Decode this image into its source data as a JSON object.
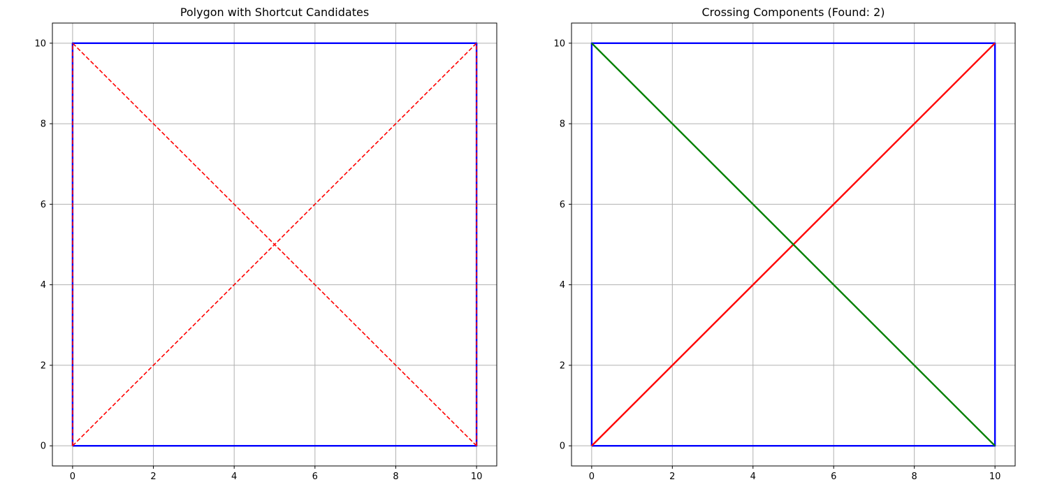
{
  "chart_data": [
    {
      "type": "line",
      "title": "Polygon with Shortcut Candidates",
      "xlabel": "",
      "ylabel": "",
      "xlim": [
        -0.5,
        10.5
      ],
      "ylim": [
        -0.5,
        10.5
      ],
      "x_ticks": [
        0,
        2,
        4,
        6,
        8,
        10
      ],
      "y_ticks": [
        0,
        2,
        4,
        6,
        8,
        10
      ],
      "x_tick_labels": [
        "0",
        "2",
        "4",
        "6",
        "8",
        "10"
      ],
      "y_tick_labels": [
        "0",
        "2",
        "4",
        "6",
        "8",
        "10"
      ],
      "grid": true,
      "series": [
        {
          "style": "solid",
          "color": "#0000ff",
          "points": [
            [
              0,
              0
            ],
            [
              10,
              0
            ],
            [
              10,
              10
            ],
            [
              0,
              10
            ],
            [
              0,
              0
            ]
          ]
        },
        {
          "style": "dashed",
          "color": "#ff0000",
          "points": [
            [
              0,
              0
            ],
            [
              10,
              10
            ]
          ]
        },
        {
          "style": "dashed",
          "color": "#ff0000",
          "points": [
            [
              10,
              0
            ],
            [
              0,
              10
            ]
          ]
        },
        {
          "style": "dashed",
          "color": "#ff0000",
          "points": [
            [
              0,
              0
            ],
            [
              0,
              10
            ]
          ]
        },
        {
          "style": "dashed",
          "color": "#ff0000",
          "points": [
            [
              10,
              0
            ],
            [
              10,
              10
            ]
          ]
        }
      ]
    },
    {
      "type": "line",
      "title": "Crossing Components (Found: 2)",
      "xlabel": "",
      "ylabel": "",
      "xlim": [
        -0.5,
        10.5
      ],
      "ylim": [
        -0.5,
        10.5
      ],
      "x_ticks": [
        0,
        2,
        4,
        6,
        8,
        10
      ],
      "y_ticks": [
        0,
        2,
        4,
        6,
        8,
        10
      ],
      "x_tick_labels": [
        "0",
        "2",
        "4",
        "6",
        "8",
        "10"
      ],
      "y_tick_labels": [
        "0",
        "2",
        "4",
        "6",
        "8",
        "10"
      ],
      "grid": true,
      "series": [
        {
          "style": "solid",
          "color": "#0000ff",
          "points": [
            [
              0,
              0
            ],
            [
              10,
              0
            ],
            [
              10,
              10
            ],
            [
              0,
              10
            ],
            [
              0,
              0
            ]
          ]
        },
        {
          "style": "solid",
          "color": "#ff0000",
          "points": [
            [
              0,
              0
            ],
            [
              10,
              10
            ]
          ]
        },
        {
          "style": "solid",
          "color": "#008000",
          "points": [
            [
              10,
              0
            ],
            [
              0,
              10
            ]
          ]
        }
      ]
    }
  ]
}
